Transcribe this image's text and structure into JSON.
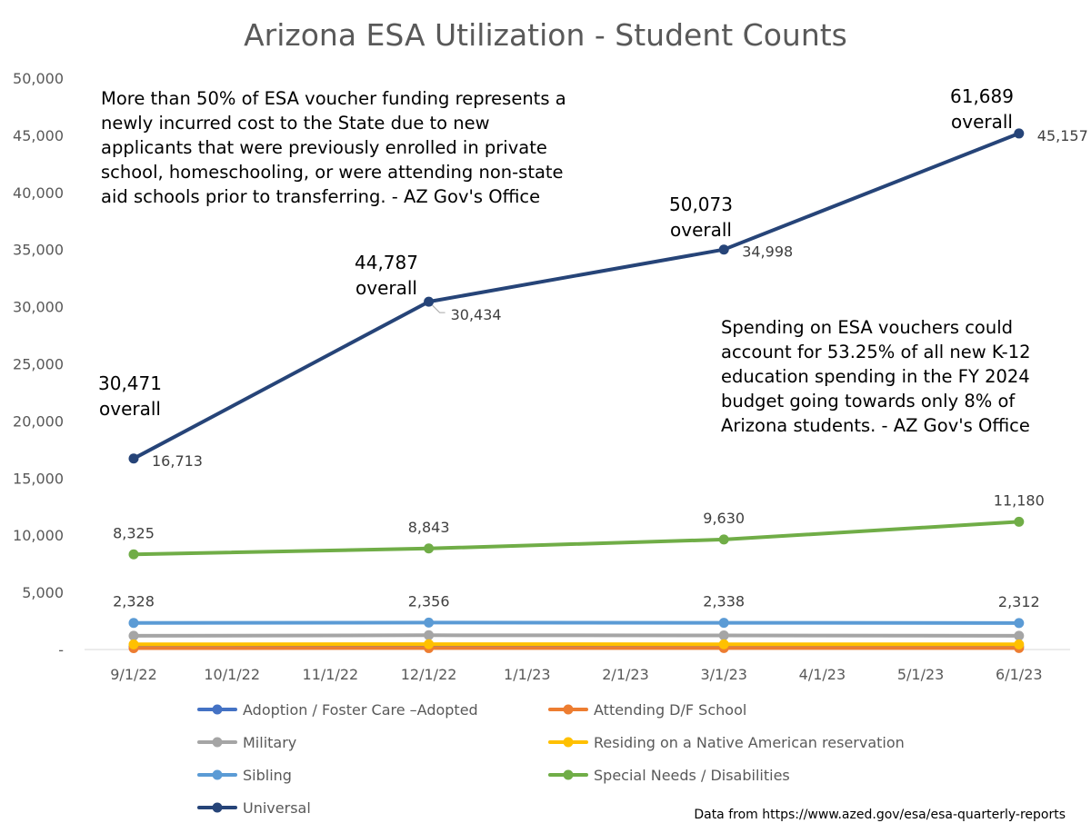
{
  "chart_data": {
    "type": "line",
    "title": "Arizona ESA Utilization - Student Counts",
    "categories": [
      "9/1/22",
      "10/1/22",
      "11/1/22",
      "12/1/22",
      "1/1/23",
      "2/1/23",
      "3/1/23",
      "4/1/23",
      "5/1/23",
      "6/1/23"
    ],
    "ylim": [
      0,
      50000
    ],
    "yticks": [
      0,
      5000,
      10000,
      15000,
      20000,
      25000,
      30000,
      35000,
      40000,
      45000,
      50000
    ],
    "ytick_labels": [
      "-",
      "5,000",
      "10,000",
      "15,000",
      "20,000",
      "25,000",
      "30,000",
      "35,000",
      "40,000",
      "45,000",
      "50,000"
    ],
    "grid": false,
    "legend_position": "bottom",
    "series": [
      {
        "name": "Adoption / Foster Care –Adopted",
        "color": "#4472c4",
        "data": [
          [
            0,
            250
          ],
          [
            3,
            260
          ],
          [
            6,
            255
          ],
          [
            9,
            250
          ]
        ],
        "labels": []
      },
      {
        "name": "Attending D/F School",
        "color": "#ed7d31",
        "data": [
          [
            0,
            120
          ],
          [
            3,
            125
          ],
          [
            6,
            130
          ],
          [
            9,
            130
          ]
        ],
        "labels": []
      },
      {
        "name": "Military",
        "color": "#a5a5a5",
        "data": [
          [
            0,
            1200
          ],
          [
            3,
            1250
          ],
          [
            6,
            1230
          ],
          [
            9,
            1200
          ]
        ],
        "labels": []
      },
      {
        "name": "Residing on a Native American reservation",
        "color": "#ffc000",
        "data": [
          [
            0,
            450
          ],
          [
            3,
            470
          ],
          [
            6,
            460
          ],
          [
            9,
            450
          ]
        ],
        "labels": []
      },
      {
        "name": "Sibling",
        "color": "#5b9bd5",
        "data": [
          [
            0,
            2328
          ],
          [
            3,
            2356
          ],
          [
            6,
            2338
          ],
          [
            9,
            2312
          ]
        ],
        "labels": [
          "2,328",
          "2,356",
          "2,338",
          "2,312"
        ]
      },
      {
        "name": "Special Needs / Disabilities",
        "color": "#70ad47",
        "data": [
          [
            0,
            8325
          ],
          [
            3,
            8843
          ],
          [
            6,
            9630
          ],
          [
            9,
            11180
          ]
        ],
        "labels": [
          "8,325",
          "8,843",
          "9,630",
          "11,180"
        ]
      },
      {
        "name": "Universal",
        "color": "#264478",
        "data": [
          [
            0,
            16713
          ],
          [
            3,
            30434
          ],
          [
            6,
            34998
          ],
          [
            9,
            45157
          ]
        ],
        "labels": [
          "16,713",
          "30,434",
          "34,998",
          "45,157"
        ]
      }
    ],
    "overall_labels": [
      {
        "lines": [
          "30,471",
          "overall"
        ]
      },
      {
        "lines": [
          "44,787",
          "overall"
        ]
      },
      {
        "lines": [
          "50,073",
          "overall"
        ]
      },
      {
        "lines": [
          "61,689",
          "overall"
        ]
      }
    ],
    "annotations": [
      {
        "lines": [
          "More than 50% of ESA voucher funding represents a",
          "newly incurred cost to the State due to new",
          "applicants that were previously enrolled in private",
          "school, homeschooling, or were attending non-state",
          "aid schools prior to transferring. - AZ Gov's Office"
        ]
      },
      {
        "lines": [
          "Spending on ESA vouchers could",
          "account for 53.25% of all new K-12",
          "education spending in the FY 2024",
          "budget going towards only 8% of",
          "Arizona students. - AZ Gov's Office"
        ]
      }
    ],
    "source": "Data from https://www.azed.gov/esa/esa-quarterly-reports"
  }
}
